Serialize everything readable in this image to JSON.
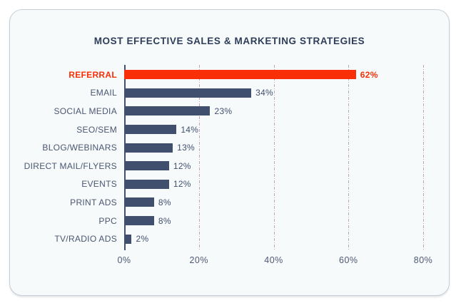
{
  "chart_data": {
    "type": "bar",
    "orientation": "horizontal",
    "title": "MOST EFFECTIVE SALES & MARKETING STRATEGIES",
    "categories": [
      "REFERRAL",
      "EMAIL",
      "SOCIAL MEDIA",
      "SEO/SEM",
      "BLOG/WEBINARS",
      "DIRECT MAIL/FLYERS",
      "EVENTS",
      "PRINT ADS",
      "PPC",
      "TV/RADIO ADS"
    ],
    "values": [
      62,
      34,
      23,
      14,
      13,
      12,
      12,
      8,
      8,
      2
    ],
    "value_labels": [
      "62%",
      "34%",
      "23%",
      "14%",
      "13%",
      "12%",
      "12%",
      "8%",
      "8%",
      "2%"
    ],
    "highlight_index": 0,
    "highlighted_category": "REFERRAL",
    "xlabel": "",
    "ylabel": "",
    "xlim": [
      0,
      84
    ],
    "xticks": [
      0,
      20,
      40,
      60,
      80
    ],
    "xtick_labels": [
      "0%",
      "20%",
      "40%",
      "60%",
      "80%"
    ],
    "grid": "vertical-dashdot",
    "legend": "none",
    "colors": {
      "page_background": "#ffffff",
      "card_background": "#f6fafb",
      "card_border": "#c9ced6",
      "title": "#2e3d59",
      "bar": "#404f6e",
      "highlight": "#f93007",
      "gridline": "#c3a2b4",
      "axis": "#42506e",
      "category_label": "#4b5671",
      "value_label": "#42506e",
      "tick_label": "#4e5975"
    }
  }
}
